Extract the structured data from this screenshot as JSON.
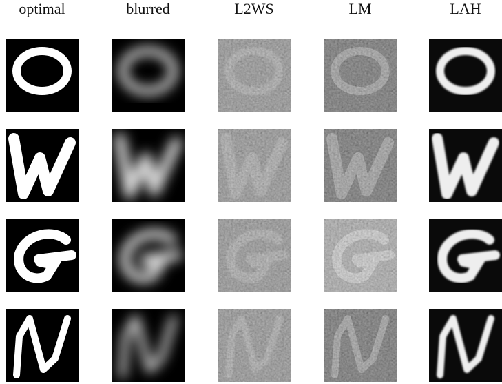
{
  "columns": [
    "optimal",
    "blurred",
    "L2WS",
    "LM",
    "LAH"
  ]
}
